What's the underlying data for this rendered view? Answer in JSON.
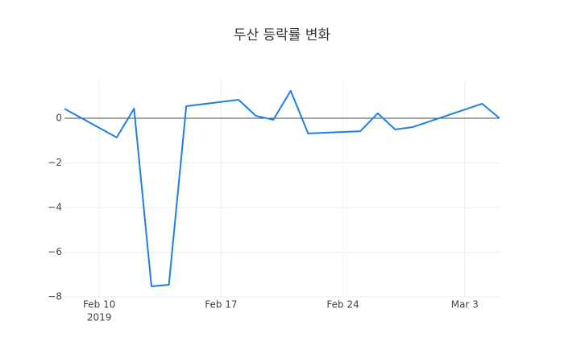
{
  "chart_data": {
    "type": "line",
    "title": "두산 등락률 변화",
    "x": [
      "2019-02-08",
      "2019-02-11",
      "2019-02-12",
      "2019-02-13",
      "2019-02-14",
      "2019-02-15",
      "2019-02-18",
      "2019-02-19",
      "2019-02-20",
      "2019-02-21",
      "2019-02-22",
      "2019-02-25",
      "2019-02-26",
      "2019-02-27",
      "2019-02-28",
      "2019-03-04",
      "2019-03-05"
    ],
    "values": [
      0.43,
      -0.86,
      0.43,
      -7.53,
      -7.46,
      0.54,
      0.83,
      0.11,
      -0.07,
      1.23,
      -0.68,
      -0.58,
      0.22,
      -0.5,
      -0.4,
      0.65,
      0.0
    ],
    "color": "#1f7fe0",
    "xlim": [
      "2019-02-08",
      "2019-03-05"
    ],
    "xticks": [
      {
        "value": "2019-02-10",
        "label": "Feb 10"
      },
      {
        "value": "2019-02-17",
        "label": "Feb 17"
      },
      {
        "value": "2019-02-24",
        "label": "Feb 24"
      },
      {
        "value": "2019-03-03",
        "label": "Mar 3"
      }
    ],
    "x_year_label": "2019",
    "ylim": [
      -8,
      1.73
    ],
    "yticks": [
      {
        "value": -8,
        "label": "−8"
      },
      {
        "value": -6,
        "label": "−6"
      },
      {
        "value": -4,
        "label": "−4"
      },
      {
        "value": -2,
        "label": "−2"
      },
      0
    ],
    "grid": true,
    "zeroline": true
  }
}
